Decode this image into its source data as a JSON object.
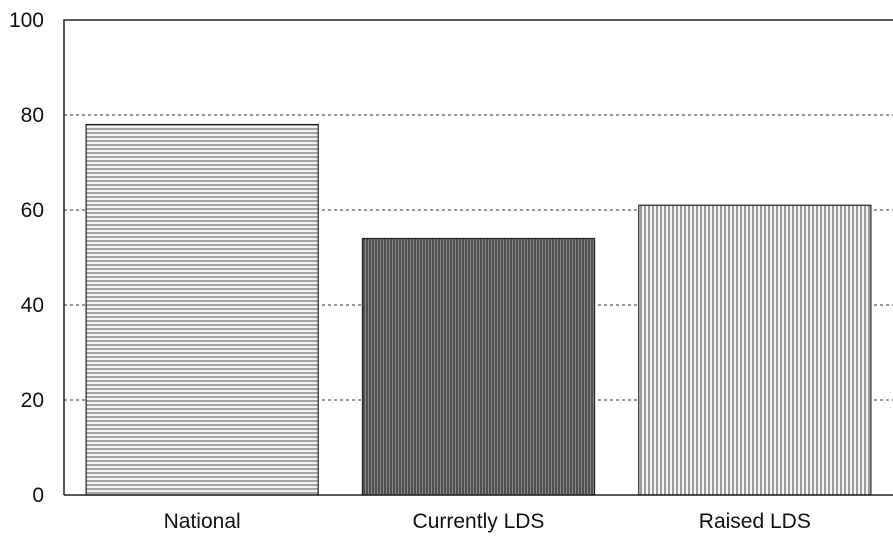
{
  "chart_data": {
    "type": "bar",
    "title": "",
    "xlabel": "",
    "ylabel": "",
    "categories": [
      "National",
      "Currently LDS",
      "Raised LDS"
    ],
    "values": [
      78,
      54,
      61
    ],
    "ylim": [
      0,
      100
    ],
    "yticks": [
      "0",
      "20",
      "40",
      "60",
      "80",
      "100"
    ],
    "grid": "dashed horizontal gridlines at 20, 40, 60, 80",
    "legend": "none",
    "bar_fills": [
      "horizontal-stripes",
      "dense-dark-vertical-stripes",
      "vertical-stripes"
    ]
  }
}
